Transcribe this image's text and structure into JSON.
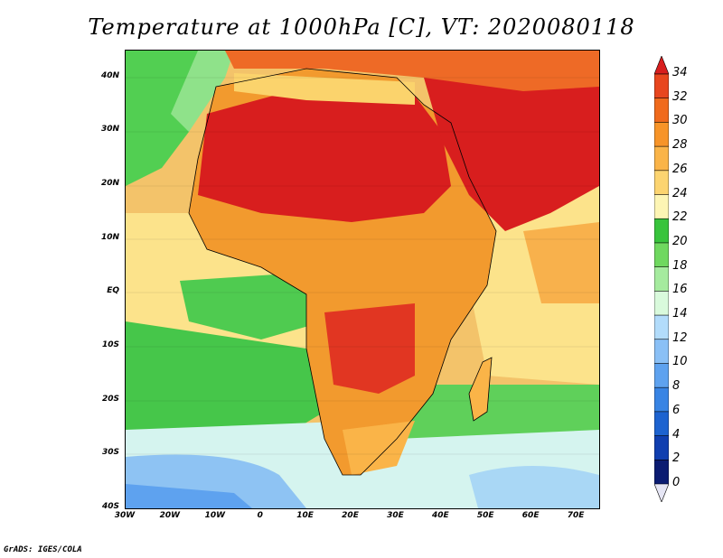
{
  "title": "Temperature at 1000hPa [C], VT: 2020080118",
  "credit": "GrADS: IGES/COLA",
  "lat_labels": [
    "40N",
    "30N",
    "20N",
    "10N",
    "EQ",
    "10S",
    "20S",
    "30S",
    "40S"
  ],
  "lat_values": [
    40,
    30,
    20,
    10,
    0,
    -10,
    -20,
    -30,
    -40
  ],
  "lon_labels": [
    "30W",
    "20W",
    "10W",
    "0",
    "10E",
    "20E",
    "30E",
    "40E",
    "50E",
    "60E",
    "70E"
  ],
  "lon_values": [
    -30,
    -20,
    -10,
    0,
    10,
    20,
    30,
    40,
    50,
    60,
    70
  ],
  "extent": {
    "lon": [
      -30,
      75
    ],
    "lat": [
      -40,
      45
    ]
  },
  "colorbar": {
    "labels": [
      "34",
      "32",
      "30",
      "28",
      "26",
      "24",
      "22",
      "20",
      "18",
      "16",
      "14",
      "12",
      "10",
      "8",
      "6",
      "4",
      "2",
      "0"
    ],
    "colors": [
      "#d81e1e",
      "#e8461e",
      "#f06a1c",
      "#f79428",
      "#fab448",
      "#fcd470",
      "#fdf5b4",
      "#38c43c",
      "#6fd85f",
      "#a5eb9e",
      "#d9fadc",
      "#b2dcfb",
      "#8ac0f6",
      "#5ea2ef",
      "#3884e4",
      "#1d63d0",
      "#103fb0",
      "#0b1c72",
      "#e6e6f5"
    ]
  }
}
